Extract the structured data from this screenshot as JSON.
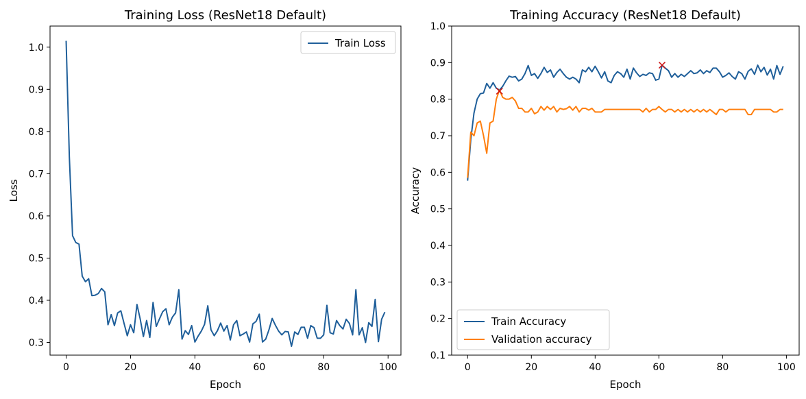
{
  "chart_data": [
    {
      "type": "line",
      "title": "Training Loss (ResNet18 Default)",
      "xlabel": "Epoch",
      "ylabel": "Loss",
      "xlim": [
        -5,
        104
      ],
      "ylim": [
        0.27,
        1.05
      ],
      "xticks": [
        0,
        20,
        40,
        60,
        80,
        100
      ],
      "yticks": [
        0.3,
        0.4,
        0.5,
        0.6,
        0.7,
        0.8,
        0.9,
        1.0
      ],
      "ytick_labels": [
        "0.3",
        "0.4",
        "0.5",
        "0.6",
        "0.7",
        "0.8",
        "0.9",
        "1.0"
      ],
      "legend_position": "top-right",
      "series": [
        {
          "name": "Train Loss",
          "color": "#1f5f9a",
          "values": [
            1.015,
            0.74,
            0.553,
            0.537,
            0.533,
            0.457,
            0.444,
            0.451,
            0.411,
            0.412,
            0.416,
            0.428,
            0.42,
            0.342,
            0.366,
            0.34,
            0.37,
            0.375,
            0.345,
            0.316,
            0.342,
            0.323,
            0.39,
            0.356,
            0.314,
            0.352,
            0.312,
            0.395,
            0.338,
            0.356,
            0.373,
            0.38,
            0.342,
            0.36,
            0.37,
            0.425,
            0.308,
            0.328,
            0.319,
            0.34,
            0.301,
            0.315,
            0.327,
            0.343,
            0.387,
            0.33,
            0.316,
            0.328,
            0.346,
            0.327,
            0.34,
            0.306,
            0.342,
            0.352,
            0.316,
            0.32,
            0.325,
            0.301,
            0.344,
            0.35,
            0.367,
            0.301,
            0.308,
            0.33,
            0.357,
            0.341,
            0.327,
            0.318,
            0.326,
            0.325,
            0.291,
            0.325,
            0.319,
            0.336,
            0.336,
            0.31,
            0.34,
            0.335,
            0.31,
            0.31,
            0.318,
            0.388,
            0.323,
            0.32,
            0.352,
            0.34,
            0.332,
            0.355,
            0.345,
            0.318,
            0.425,
            0.318,
            0.335,
            0.3,
            0.347,
            0.338,
            0.402,
            0.302,
            0.355,
            0.372
          ]
        }
      ]
    },
    {
      "type": "line",
      "title": "Training Accuracy (ResNet18 Default)",
      "xlabel": "Epoch",
      "ylabel": "Accuracy",
      "xlim": [
        -5,
        104
      ],
      "ylim": [
        0.1,
        1.0
      ],
      "xticks": [
        0,
        20,
        40,
        60,
        80,
        100
      ],
      "yticks": [
        0.1,
        0.2,
        0.3,
        0.4,
        0.5,
        0.6,
        0.7,
        0.8,
        0.9,
        1.0
      ],
      "ytick_labels": [
        "0.1",
        "0.2",
        "0.3",
        "0.4",
        "0.5",
        "0.6",
        "0.7",
        "0.8",
        "0.9",
        "1.0"
      ],
      "legend_position": "bottom-left",
      "series": [
        {
          "name": "Train Accuracy",
          "color": "#1f5f9a",
          "values": [
            0.577,
            0.69,
            0.762,
            0.8,
            0.815,
            0.817,
            0.843,
            0.83,
            0.845,
            0.83,
            0.825,
            0.835,
            0.85,
            0.863,
            0.86,
            0.862,
            0.85,
            0.855,
            0.87,
            0.892,
            0.865,
            0.87,
            0.857,
            0.87,
            0.887,
            0.873,
            0.88,
            0.86,
            0.873,
            0.882,
            0.87,
            0.86,
            0.855,
            0.86,
            0.855,
            0.845,
            0.88,
            0.875,
            0.887,
            0.875,
            0.89,
            0.875,
            0.858,
            0.875,
            0.85,
            0.845,
            0.865,
            0.875,
            0.87,
            0.86,
            0.882,
            0.855,
            0.885,
            0.872,
            0.862,
            0.868,
            0.865,
            0.872,
            0.87,
            0.852,
            0.855,
            0.893,
            0.885,
            0.878,
            0.86,
            0.87,
            0.86,
            0.868,
            0.862,
            0.87,
            0.878,
            0.87,
            0.872,
            0.88,
            0.87,
            0.878,
            0.873,
            0.885,
            0.885,
            0.875,
            0.86,
            0.865,
            0.872,
            0.862,
            0.855,
            0.875,
            0.87,
            0.855,
            0.876,
            0.883,
            0.868,
            0.893,
            0.875,
            0.887,
            0.866,
            0.882,
            0.855,
            0.892,
            0.868,
            0.89
          ]
        },
        {
          "name": "Validation accuracy",
          "color": "#ff7f0e",
          "values": [
            0.585,
            0.71,
            0.7,
            0.735,
            0.74,
            0.7,
            0.652,
            0.735,
            0.74,
            0.8,
            0.825,
            0.805,
            0.8,
            0.8,
            0.805,
            0.795,
            0.775,
            0.775,
            0.765,
            0.765,
            0.775,
            0.76,
            0.765,
            0.78,
            0.77,
            0.78,
            0.772,
            0.78,
            0.765,
            0.775,
            0.772,
            0.774,
            0.78,
            0.77,
            0.78,
            0.765,
            0.775,
            0.775,
            0.77,
            0.775,
            0.765,
            0.765,
            0.765,
            0.772,
            0.772,
            0.772,
            0.772,
            0.772,
            0.772,
            0.772,
            0.772,
            0.772,
            0.772,
            0.772,
            0.772,
            0.765,
            0.775,
            0.765,
            0.772,
            0.772,
            0.78,
            0.772,
            0.765,
            0.772,
            0.772,
            0.765,
            0.772,
            0.765,
            0.772,
            0.765,
            0.772,
            0.765,
            0.772,
            0.765,
            0.772,
            0.765,
            0.772,
            0.765,
            0.758,
            0.772,
            0.772,
            0.765,
            0.772,
            0.772,
            0.772,
            0.772,
            0.772,
            0.772,
            0.758,
            0.758,
            0.772,
            0.772,
            0.772,
            0.772,
            0.772,
            0.772,
            0.765,
            0.765,
            0.772,
            0.772
          ]
        }
      ],
      "markers": [
        {
          "x": 10,
          "y": 0.822,
          "symbol": "x",
          "color": "#cc1111"
        },
        {
          "x": 61,
          "y": 0.893,
          "symbol": "x",
          "color": "#cc1111"
        }
      ]
    }
  ]
}
